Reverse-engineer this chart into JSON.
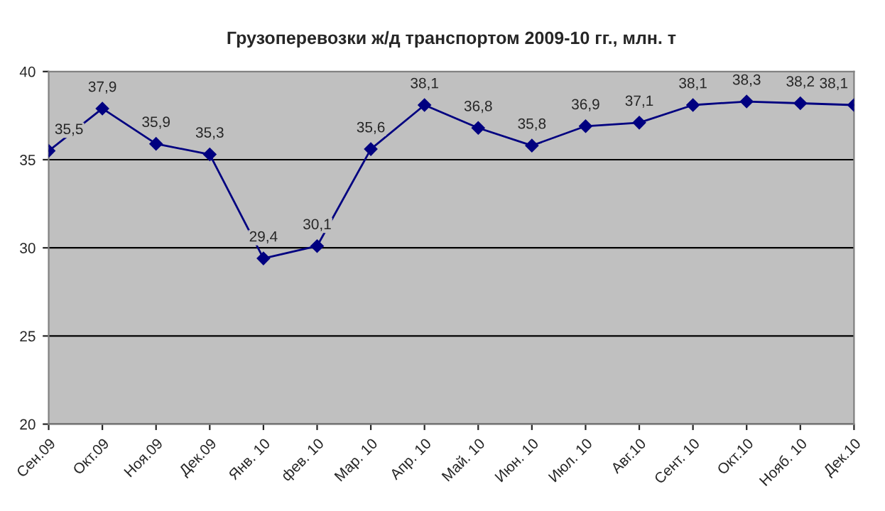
{
  "chart_data": {
    "type": "line",
    "title": "Грузоперевозки ж/д транспортом 2009-10 гг., млн. т",
    "categories": [
      "Сен.09",
      "Окт.09",
      "Ноя.09",
      "Дек.09",
      "Янв. 10",
      "фев. 10",
      "Мар. 10",
      "Апр. 10",
      "Май. 10",
      "Июн. 10",
      "Июл. 10",
      "Авг.10",
      "Сент. 10",
      "Окт.10",
      "Нояб. 10",
      "Дек.10"
    ],
    "series": [
      {
        "color": "#000080",
        "values": [
          35.5,
          37.9,
          35.9,
          35.3,
          29.4,
          30.1,
          35.6,
          38.1,
          36.8,
          35.8,
          36.9,
          37.1,
          38.1,
          38.3,
          38.2,
          38.1
        ],
        "value_labels": [
          "35,5",
          "37,9",
          "35,9",
          "35,3",
          "29,4",
          "30,1",
          "35,6",
          "38,1",
          "36,8",
          "35,8",
          "36,9",
          "37,1",
          "38,1",
          "38,3",
          "38,2",
          "38,1"
        ]
      }
    ],
    "ylim": [
      20,
      40
    ],
    "yticks": [
      20,
      25,
      30,
      35,
      40
    ],
    "grid": "y",
    "marker": "diamond",
    "line_style": "solid",
    "legend": false
  }
}
